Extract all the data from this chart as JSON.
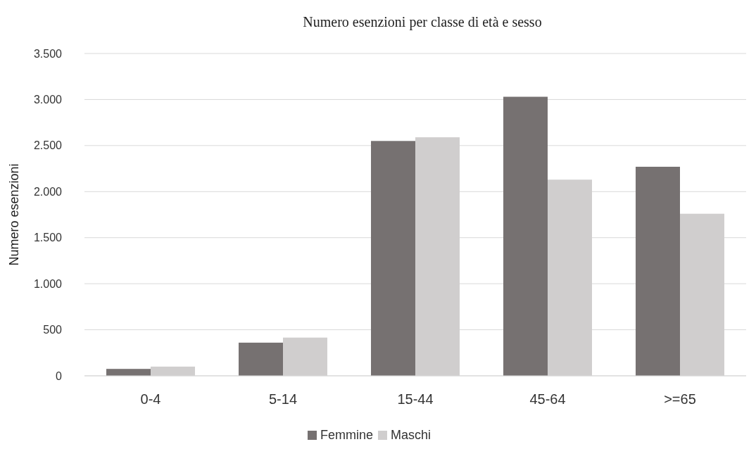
{
  "chart_data": {
    "type": "bar",
    "title": "Numero esenzioni per classe di età e sesso",
    "ylabel": "Numero esenzioni",
    "categories": [
      "0-4",
      "5-14",
      "15-44",
      "45-64",
      ">=65"
    ],
    "series": [
      {
        "name": "Femmine",
        "color": "#767171",
        "values": [
          75,
          360,
          2550,
          3030,
          2270
        ]
      },
      {
        "name": "Maschi",
        "color": "#d0cece",
        "values": [
          100,
          415,
          2590,
          2130,
          1760
        ]
      }
    ],
    "ylim": [
      0,
      3500
    ],
    "yticks": [
      0,
      500,
      {
        "value": 1000,
        "label": "1.000"
      },
      {
        "value": 1500,
        "label": "1.500"
      },
      {
        "value": 2000,
        "label": "2.000"
      },
      {
        "value": 2500,
        "label": "2.500"
      },
      {
        "value": 3000,
        "label": "3.000"
      },
      {
        "value": 3500,
        "label": "3.500"
      }
    ],
    "grid": "y",
    "legend": "bottom"
  }
}
